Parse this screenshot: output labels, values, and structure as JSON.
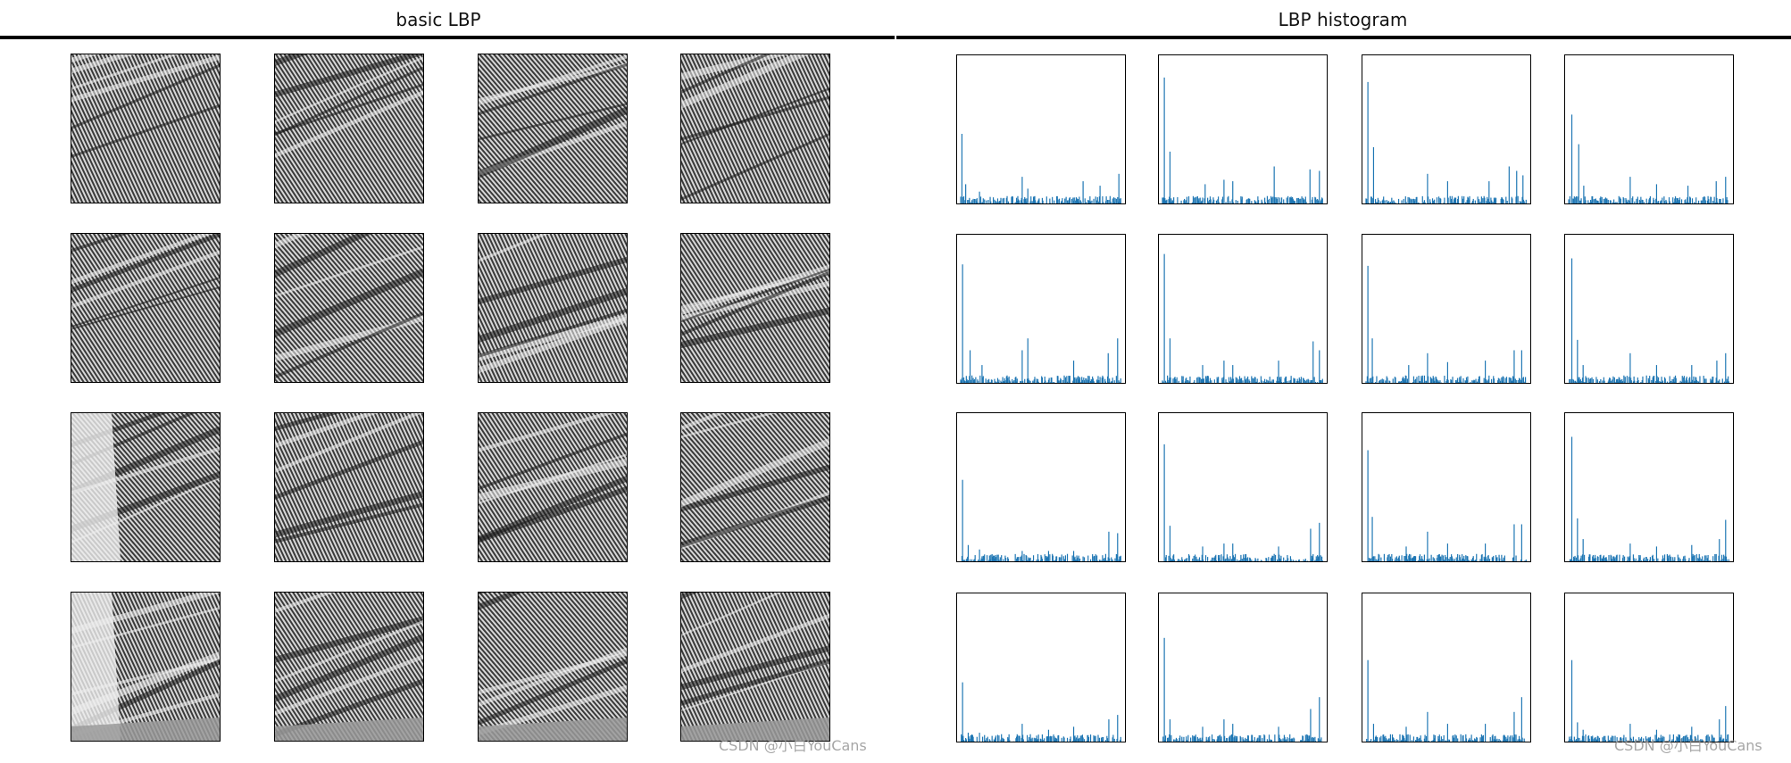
{
  "panels": {
    "left_title": "basic LBP",
    "right_title": "LBP histogram"
  },
  "watermarks": [
    "CSDN @小白YouCans",
    "CSDN @小白YouCans"
  ],
  "colors": {
    "histogram_bar": "#1f77b4",
    "frame": "#000000",
    "rule": "#000000"
  },
  "chart_data": [
    {
      "type": "image_grid",
      "title": "basic LBP",
      "rows": 4,
      "cols": 4,
      "description_hidden": true
    },
    {
      "type": "bar",
      "title": "LBP histogram",
      "rows": 4,
      "cols": 4,
      "bins": 256,
      "axes_ticks_visible": false,
      "subplots": [
        {
          "peaks": [
            [
              2,
              0.47
            ],
            [
              8,
              0.13
            ],
            [
              30,
              0.08
            ],
            [
              98,
              0.18
            ],
            [
              107,
              0.1
            ],
            [
              195,
              0.15
            ],
            [
              222,
              0.12
            ],
            [
              252,
              0.2
            ]
          ]
        },
        {
          "peaks": [
            [
              3,
              0.85
            ],
            [
              12,
              0.35
            ],
            [
              68,
              0.13
            ],
            [
              98,
              0.16
            ],
            [
              112,
              0.15
            ],
            [
              178,
              0.25
            ],
            [
              235,
              0.23
            ],
            [
              250,
              0.22
            ]
          ]
        },
        {
          "peaks": [
            [
              3,
              0.82
            ],
            [
              12,
              0.38
            ],
            [
              98,
              0.2
            ],
            [
              130,
              0.15
            ],
            [
              196,
              0.15
            ],
            [
              228,
              0.25
            ],
            [
              240,
              0.22
            ],
            [
              250,
              0.19
            ]
          ]
        },
        {
          "peaks": [
            [
              5,
              0.6
            ],
            [
              16,
              0.4
            ],
            [
              24,
              0.12
            ],
            [
              98,
              0.18
            ],
            [
              140,
              0.13
            ],
            [
              190,
              0.12
            ],
            [
              235,
              0.15
            ],
            [
              250,
              0.18
            ]
          ]
        },
        {
          "peaks": [
            [
              3,
              0.8
            ],
            [
              15,
              0.22
            ],
            [
              34,
              0.12
            ],
            [
              98,
              0.22
            ],
            [
              107,
              0.3
            ],
            [
              180,
              0.15
            ],
            [
              235,
              0.2
            ],
            [
              250,
              0.3
            ]
          ]
        },
        {
          "peaks": [
            [
              3,
              0.87
            ],
            [
              12,
              0.3
            ],
            [
              64,
              0.12
            ],
            [
              98,
              0.15
            ],
            [
              112,
              0.12
            ],
            [
              185,
              0.15
            ],
            [
              240,
              0.28
            ],
            [
              250,
              0.22
            ]
          ]
        },
        {
          "peaks": [
            [
              3,
              0.79
            ],
            [
              10,
              0.3
            ],
            [
              68,
              0.12
            ],
            [
              98,
              0.2
            ],
            [
              130,
              0.14
            ],
            [
              190,
              0.15
            ],
            [
              236,
              0.22
            ],
            [
              248,
              0.22
            ]
          ]
        },
        {
          "peaks": [
            [
              5,
              0.84
            ],
            [
              14,
              0.29
            ],
            [
              23,
              0.12
            ],
            [
              98,
              0.2
            ],
            [
              140,
              0.12
            ],
            [
              196,
              0.12
            ],
            [
              236,
              0.15
            ],
            [
              250,
              0.2
            ]
          ]
        },
        {
          "peaks": [
            [
              3,
              0.55
            ],
            [
              12,
              0.11
            ],
            [
              30,
              0.08
            ],
            [
              98,
              0.07
            ],
            [
              140,
              0.07
            ],
            [
              180,
              0.07
            ],
            [
              236,
              0.2
            ],
            [
              250,
              0.19
            ]
          ]
        },
        {
          "peaks": [
            [
              3,
              0.79
            ],
            [
              12,
              0.24
            ],
            [
              64,
              0.1
            ],
            [
              98,
              0.12
            ],
            [
              112,
              0.12
            ],
            [
              185,
              0.1
            ],
            [
              236,
              0.22
            ],
            [
              250,
              0.26
            ]
          ]
        },
        {
          "peaks": [
            [
              3,
              0.75
            ],
            [
              10,
              0.3
            ],
            [
              64,
              0.1
            ],
            [
              98,
              0.2
            ],
            [
              130,
              0.12
            ],
            [
              190,
              0.12
            ],
            [
              236,
              0.25
            ],
            [
              248,
              0.25
            ]
          ]
        },
        {
          "peaks": [
            [
              5,
              0.84
            ],
            [
              14,
              0.29
            ],
            [
              23,
              0.15
            ],
            [
              98,
              0.12
            ],
            [
              140,
              0.1
            ],
            [
              196,
              0.11
            ],
            [
              240,
              0.15
            ],
            [
              250,
              0.28
            ]
          ]
        },
        {
          "peaks": [
            [
              3,
              0.4
            ],
            [
              12,
              0.06
            ],
            [
              30,
              0.06
            ],
            [
              98,
              0.12
            ],
            [
              140,
              0.08
            ],
            [
              180,
              0.1
            ],
            [
              236,
              0.15
            ],
            [
              250,
              0.18
            ]
          ]
        },
        {
          "peaks": [
            [
              3,
              0.7
            ],
            [
              12,
              0.15
            ],
            [
              64,
              0.1
            ],
            [
              98,
              0.15
            ],
            [
              112,
              0.12
            ],
            [
              185,
              0.1
            ],
            [
              236,
              0.22
            ],
            [
              250,
              0.3
            ]
          ]
        },
        {
          "peaks": [
            [
              3,
              0.55
            ],
            [
              12,
              0.12
            ],
            [
              64,
              0.1
            ],
            [
              98,
              0.2
            ],
            [
              130,
              0.12
            ],
            [
              190,
              0.12
            ],
            [
              236,
              0.2
            ],
            [
              248,
              0.3
            ]
          ]
        },
        {
          "peaks": [
            [
              5,
              0.55
            ],
            [
              14,
              0.13
            ],
            [
              23,
              0.08
            ],
            [
              98,
              0.12
            ],
            [
              140,
              0.08
            ],
            [
              196,
              0.1
            ],
            [
              240,
              0.15
            ],
            [
              250,
              0.24
            ]
          ]
        }
      ]
    }
  ]
}
